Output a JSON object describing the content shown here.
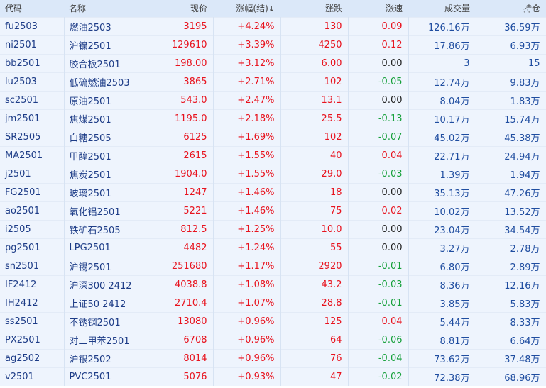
{
  "header": {
    "code": "代码",
    "name": "名称",
    "price": "现价",
    "change_pct": "涨幅(结)",
    "sort_icon": "↓",
    "change": "涨跌",
    "speed": "涨速",
    "volume": "成交量",
    "open_interest": "持仓"
  },
  "rows": [
    {
      "code": "fu2503",
      "name": "燃油2503",
      "price": "3195",
      "change_pct": "+4.24%",
      "change": "130",
      "speed": "0.09",
      "volume": "126.16万",
      "open_interest": "36.59万"
    },
    {
      "code": "ni2501",
      "name": "沪镍2501",
      "price": "129610",
      "change_pct": "+3.39%",
      "change": "4250",
      "speed": "0.12",
      "volume": "17.86万",
      "open_interest": "6.93万"
    },
    {
      "code": "bb2501",
      "name": "胶合板2501",
      "price": "198.00",
      "change_pct": "+3.12%",
      "change": "6.00",
      "speed": "0.00",
      "volume": "3",
      "open_interest": "15"
    },
    {
      "code": "lu2503",
      "name": "低硫燃油2503",
      "price": "3865",
      "change_pct": "+2.71%",
      "change": "102",
      "speed": "-0.05",
      "volume": "12.74万",
      "open_interest": "9.83万"
    },
    {
      "code": "sc2501",
      "name": "原油2501",
      "price": "543.0",
      "change_pct": "+2.47%",
      "change": "13.1",
      "speed": "0.00",
      "volume": "8.04万",
      "open_interest": "1.83万"
    },
    {
      "code": "jm2501",
      "name": "焦煤2501",
      "price": "1195.0",
      "change_pct": "+2.18%",
      "change": "25.5",
      "speed": "-0.13",
      "volume": "10.17万",
      "open_interest": "15.74万"
    },
    {
      "code": "SR2505",
      "name": "白糖2505",
      "price": "6125",
      "change_pct": "+1.69%",
      "change": "102",
      "speed": "-0.07",
      "volume": "45.02万",
      "open_interest": "45.38万"
    },
    {
      "code": "MA2501",
      "name": "甲醇2501",
      "price": "2615",
      "change_pct": "+1.55%",
      "change": "40",
      "speed": "0.04",
      "volume": "22.71万",
      "open_interest": "24.94万"
    },
    {
      "code": "j2501",
      "name": "焦炭2501",
      "price": "1904.0",
      "change_pct": "+1.55%",
      "change": "29.0",
      "speed": "-0.03",
      "volume": "1.39万",
      "open_interest": "1.94万"
    },
    {
      "code": "FG2501",
      "name": "玻璃2501",
      "price": "1247",
      "change_pct": "+1.46%",
      "change": "18",
      "speed": "0.00",
      "volume": "35.13万",
      "open_interest": "47.26万"
    },
    {
      "code": "ao2501",
      "name": "氧化铝2501",
      "price": "5221",
      "change_pct": "+1.46%",
      "change": "75",
      "speed": "0.02",
      "volume": "10.02万",
      "open_interest": "13.52万"
    },
    {
      "code": "i2505",
      "name": "铁矿石2505",
      "price": "812.5",
      "change_pct": "+1.25%",
      "change": "10.0",
      "speed": "0.00",
      "volume": "23.04万",
      "open_interest": "34.54万"
    },
    {
      "code": "pg2501",
      "name": "LPG2501",
      "price": "4482",
      "change_pct": "+1.24%",
      "change": "55",
      "speed": "0.00",
      "volume": "3.27万",
      "open_interest": "2.78万"
    },
    {
      "code": "sn2501",
      "name": "沪锡2501",
      "price": "251680",
      "change_pct": "+1.17%",
      "change": "2920",
      "speed": "-0.01",
      "volume": "6.80万",
      "open_interest": "2.89万"
    },
    {
      "code": "IF2412",
      "name": "沪深300 2412",
      "price": "4038.8",
      "change_pct": "+1.08%",
      "change": "43.2",
      "speed": "-0.03",
      "volume": "8.36万",
      "open_interest": "12.16万"
    },
    {
      "code": "IH2412",
      "name": "上证50 2412",
      "price": "2710.4",
      "change_pct": "+1.07%",
      "change": "28.8",
      "speed": "-0.01",
      "volume": "3.85万",
      "open_interest": "5.83万"
    },
    {
      "code": "ss2501",
      "name": "不锈钢2501",
      "price": "13080",
      "change_pct": "+0.96%",
      "change": "125",
      "speed": "0.04",
      "volume": "5.44万",
      "open_interest": "8.33万"
    },
    {
      "code": "PX2501",
      "name": "对二甲苯2501",
      "price": "6708",
      "change_pct": "+0.96%",
      "change": "64",
      "speed": "-0.06",
      "volume": "8.81万",
      "open_interest": "6.64万"
    },
    {
      "code": "ag2502",
      "name": "沪银2502",
      "price": "8014",
      "change_pct": "+0.96%",
      "change": "76",
      "speed": "-0.04",
      "volume": "73.62万",
      "open_interest": "37.48万"
    },
    {
      "code": "v2501",
      "name": "PVC2501",
      "price": "5076",
      "change_pct": "+0.93%",
      "change": "47",
      "speed": "-0.02",
      "volume": "72.38万",
      "open_interest": "68.96万"
    }
  ],
  "colors": {
    "up": "#e8131e",
    "down": "#16a03a",
    "flat": "#222222",
    "header_bg": "#dbe8f9",
    "row_bg": "#eef4fd"
  }
}
